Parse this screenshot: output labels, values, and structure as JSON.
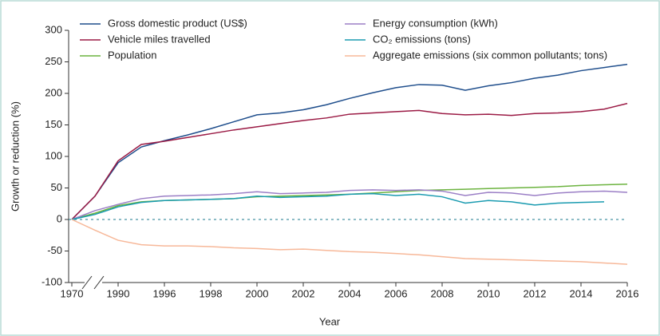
{
  "chart_data": {
    "type": "line",
    "xlabel": "Year",
    "ylabel": "Growth or reduction (%)",
    "categories": [
      "1970",
      null,
      "1990",
      null,
      "1996",
      null,
      "1998",
      null,
      "2000",
      null,
      "2002",
      null,
      "2004",
      null,
      "2006",
      null,
      "2008",
      null,
      "2010",
      null,
      "2012",
      null,
      "2014",
      null,
      "2016"
    ],
    "series": [
      {
        "name": "Gross domestic product (US$)",
        "color": "#1f4e8c",
        "values": [
          0,
          37,
          90,
          115,
          125,
          134,
          144,
          155,
          166,
          169,
          174,
          182,
          192,
          201,
          209,
          214,
          213,
          205,
          212,
          217,
          224,
          229,
          236,
          241,
          246
        ]
      },
      {
        "name": "Vehicle miles travelled",
        "color": "#9b1b45",
        "values": [
          0,
          37,
          93,
          119,
          124,
          130,
          136,
          142,
          147,
          152,
          157,
          161,
          167,
          169,
          171,
          173,
          168,
          166,
          167,
          165,
          168,
          169,
          171,
          175,
          184
        ]
      },
      {
        "name": "Population",
        "color": "#6cb33f",
        "values": [
          0,
          10,
          22,
          28,
          30,
          31,
          32,
          33,
          36,
          37,
          38,
          39,
          40,
          42,
          44,
          46,
          47,
          48,
          49,
          50,
          51,
          52,
          54,
          55,
          56
        ]
      },
      {
        "name": "Energy consumption (kWh)",
        "color": "#9b7fc6",
        "values": [
          0,
          14,
          24,
          33,
          37,
          38,
          39,
          41,
          44,
          41,
          42,
          43,
          46,
          47,
          46,
          47,
          45,
          38,
          43,
          42,
          38,
          42,
          44,
          45,
          43
        ]
      },
      {
        "name": "CO₂ emissions (tons)",
        "color": "#1a9bb0",
        "values": [
          0,
          8,
          20,
          27,
          30,
          31,
          32,
          33,
          37,
          35,
          36,
          37,
          40,
          41,
          38,
          40,
          36,
          26,
          30,
          28,
          23,
          26,
          27,
          28,
          null
        ]
      },
      {
        "name": "Aggregate emissions (six common pollutants; tons)",
        "color": "#f7b899",
        "values": [
          0,
          -17,
          -33,
          -40,
          -42,
          -42,
          -43,
          -45,
          -46,
          -48,
          -47,
          -49,
          -51,
          -52,
          -54,
          -56,
          -59,
          -62,
          -63,
          -64,
          -65,
          -66,
          -67,
          -69,
          -71
        ]
      }
    ],
    "ylim": [
      -100,
      300
    ],
    "yticks": [
      -100,
      -50,
      0,
      50,
      100,
      150,
      200,
      250,
      300
    ],
    "grid": false
  }
}
